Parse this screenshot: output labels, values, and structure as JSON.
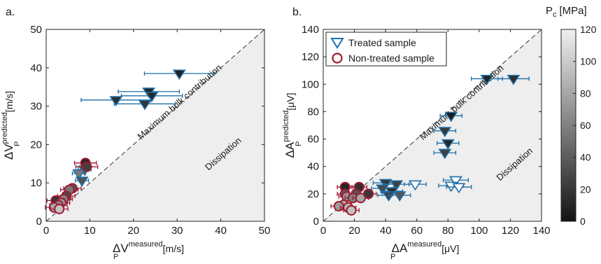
{
  "chart_data": [
    {
      "panel_label": "a.",
      "type": "scatter",
      "xlim": [
        0,
        50
      ],
      "ylim": [
        0,
        50
      ],
      "xticks": [
        0,
        10,
        20,
        30,
        40,
        50
      ],
      "yticks": [
        0,
        10,
        20,
        30,
        40,
        50
      ],
      "xlabel": {
        "main": "ΔV",
        "sub": "P",
        "sup": "measured",
        "unit": "[m/s]"
      },
      "ylabel": {
        "main": "ΔV",
        "sub": "P",
        "sup": "predicted",
        "unit": "[m/s]"
      },
      "annotations": {
        "bulk": "Maximum bulk contribution",
        "dissipation": "Dissipation"
      },
      "series": [
        {
          "name": "Treated sample",
          "marker": "triangle-down",
          "points": [
            {
              "x": 30.5,
              "y": 38.5,
              "xerr": 8,
              "pc": 8,
              "filled": true
            },
            {
              "x": 23.5,
              "y": 33.8,
              "xerr": 7,
              "pc": 12,
              "filled": true
            },
            {
              "x": 24.2,
              "y": 32.7,
              "xerr": 7,
              "pc": 10,
              "filled": true
            },
            {
              "x": 16.0,
              "y": 31.6,
              "xerr": 8,
              "pc": 15,
              "filled": true
            },
            {
              "x": 22.6,
              "y": 30.6,
              "xerr": 7,
              "pc": 18,
              "filled": true
            },
            {
              "x": 8.8,
              "y": 13.5,
              "xerr": 1.5,
              "pc": 45,
              "filled": true
            },
            {
              "x": 7.5,
              "y": 12.5,
              "xerr": 1.5,
              "pc": 55,
              "filled": true
            },
            {
              "x": 8.2,
              "y": 10.6,
              "xerr": 1.5,
              "pc": 35,
              "filled": true
            }
          ]
        },
        {
          "name": "Non-treated sample",
          "marker": "circle",
          "points": [
            {
              "x": 9.0,
              "y": 15.2,
              "xerr": 2.5,
              "pc": 10
            },
            {
              "x": 9.3,
              "y": 14.2,
              "xerr": 2.5,
              "pc": 25
            },
            {
              "x": 6.0,
              "y": 8.6,
              "xerr": 2,
              "pc": 35
            },
            {
              "x": 5.3,
              "y": 8.2,
              "xerr": 2,
              "pc": 55
            },
            {
              "x": 4.6,
              "y": 6.6,
              "xerr": 2,
              "pc": 30
            },
            {
              "x": 4.0,
              "y": 5.8,
              "xerr": 2,
              "pc": 60
            },
            {
              "x": 2.2,
              "y": 5.4,
              "xerr": 2,
              "pc": 20
            },
            {
              "x": 3.4,
              "y": 4.8,
              "xerr": 2,
              "pc": 75
            },
            {
              "x": 2.8,
              "y": 4.2,
              "xerr": 2,
              "pc": 65
            },
            {
              "x": 1.8,
              "y": 3.6,
              "xerr": 2,
              "pc": 80
            },
            {
              "x": 3.0,
              "y": 3.2,
              "xerr": 2,
              "pc": 95
            }
          ]
        }
      ]
    },
    {
      "panel_label": "b.",
      "type": "scatter",
      "xlim": [
        0,
        140
      ],
      "ylim": [
        0,
        140
      ],
      "xticks": [
        0,
        20,
        40,
        60,
        80,
        100,
        120,
        140
      ],
      "yticks": [
        0,
        20,
        40,
        60,
        80,
        100,
        120,
        140
      ],
      "xlabel": {
        "main": "ΔA",
        "sub": "P",
        "sup": "measured",
        "unit": "[μV]"
      },
      "ylabel": {
        "main": "ΔA",
        "sub": "P",
        "sup": "predicted",
        "unit": "[μV]"
      },
      "annotations": {
        "bulk": "Maximum bulk contribution",
        "dissipation": "Dissipation"
      },
      "legend": {
        "position": "top-left",
        "entries": [
          "Treated sample",
          "Non-treated sample"
        ]
      },
      "series": [
        {
          "name": "Treated sample",
          "marker": "triangle-down",
          "points": [
            {
              "x": 105,
              "y": 104,
              "xerr": 10,
              "pc": 10,
              "filled": true
            },
            {
              "x": 122,
              "y": 104,
              "xerr": 10,
              "pc": 15,
              "filled": true
            },
            {
              "x": 82,
              "y": 77,
              "xerr": 7,
              "pc": 5,
              "filled": true
            },
            {
              "x": 78,
              "y": 66,
              "xerr": 7,
              "pc": 20,
              "filled": true
            },
            {
              "x": 80,
              "y": 57,
              "xerr": 7,
              "pc": 10,
              "filled": true
            },
            {
              "x": 78,
              "y": 50,
              "xerr": 7,
              "pc": 25,
              "filled": true
            },
            {
              "x": 40,
              "y": 28,
              "xerr": 8,
              "pc": 20,
              "filled": true
            },
            {
              "x": 47,
              "y": 27,
              "xerr": 8,
              "pc": 25,
              "filled": true
            },
            {
              "x": 38,
              "y": 24,
              "xerr": 7,
              "pc": 30,
              "filled": true
            },
            {
              "x": 44,
              "y": 22,
              "xerr": 7,
              "pc": 15,
              "filled": true
            },
            {
              "x": 42,
              "y": 19,
              "xerr": 7,
              "pc": 25,
              "filled": true
            },
            {
              "x": 49,
              "y": 19,
              "xerr": 7,
              "pc": 35,
              "filled": true
            },
            {
              "x": 59,
              "y": 27,
              "xerr": 7,
              "pc": 0,
              "filled": false
            },
            {
              "x": 85,
              "y": 30,
              "xerr": 8,
              "pc": 0,
              "filled": false
            },
            {
              "x": 82,
              "y": 26,
              "xerr": 8,
              "pc": 0,
              "filled": false
            },
            {
              "x": 87,
              "y": 25,
              "xerr": 8,
              "pc": 0,
              "filled": false
            }
          ]
        },
        {
          "name": "Non-treated sample",
          "marker": "circle",
          "points": [
            {
              "x": 14,
              "y": 25,
              "xerr": 5,
              "pc": 10
            },
            {
              "x": 23,
              "y": 25,
              "xerr": 5,
              "pc": 15
            },
            {
              "x": 14,
              "y": 20,
              "xerr": 5,
              "pc": 40
            },
            {
              "x": 21,
              "y": 20,
              "xerr": 5,
              "pc": 35
            },
            {
              "x": 29,
              "y": 20,
              "xerr": 5,
              "pc": 20
            },
            {
              "x": 15,
              "y": 18,
              "xerr": 5,
              "pc": 70
            },
            {
              "x": 19,
              "y": 17,
              "xerr": 5,
              "pc": 60
            },
            {
              "x": 24,
              "y": 17,
              "xerr": 5,
              "pc": 80
            },
            {
              "x": 13,
              "y": 12,
              "xerr": 5,
              "pc": 85
            },
            {
              "x": 10,
              "y": 11,
              "xerr": 5,
              "pc": 75
            },
            {
              "x": 16,
              "y": 10,
              "xerr": 5,
              "pc": 90
            },
            {
              "x": 18,
              "y": 8,
              "xerr": 5,
              "pc": 95
            }
          ]
        }
      ]
    }
  ],
  "colorbar": {
    "title": "P",
    "title_sub": "c",
    "title_unit": "[MPa]",
    "min": 0,
    "max": 120,
    "ticks": [
      0,
      20,
      40,
      60,
      80,
      100,
      120
    ]
  },
  "colors": {
    "treated_edge": "#1d6fa8",
    "nontreated_edge": "#9e1b32",
    "dissipation_fill": "#eeeeee",
    "diagonal": "#333333"
  }
}
